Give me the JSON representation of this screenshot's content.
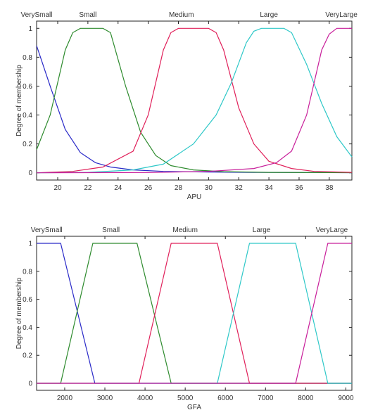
{
  "chart_data": [
    {
      "type": "line",
      "xlabel": "APU",
      "ylabel": "Degree of membership",
      "xlim": [
        18.6,
        39.5
      ],
      "ylim": [
        -0.05,
        1.05
      ],
      "xticks": [
        "20",
        "22",
        "24",
        "26",
        "28",
        "30",
        "32",
        "34",
        "36",
        "38"
      ],
      "yticks": [
        "0",
        "0.2",
        "0.4",
        "0.6",
        "0.8",
        "1"
      ],
      "colors": [
        "#2a2ac8",
        "#2e8b2e",
        "#e0205a",
        "#2ec8c8",
        "#c81e9a"
      ],
      "series": [
        {
          "name": "VerySmall",
          "label_x": 18.6,
          "x": [
            18.6,
            19.5,
            20.5,
            21.5,
            22.5,
            23.5,
            25,
            27,
            30,
            33,
            36,
            39.5
          ],
          "y": [
            0.88,
            0.6,
            0.3,
            0.14,
            0.07,
            0.04,
            0.02,
            0.01,
            0.005,
            0.003,
            0.002,
            0.001
          ]
        },
        {
          "name": "Small",
          "label_x": 22,
          "x": [
            18.6,
            19.5,
            20.5,
            21,
            21.5,
            22,
            23,
            23.5,
            24.5,
            25.5,
            26.5,
            27.5,
            29,
            31,
            34,
            39.5
          ],
          "y": [
            0.16,
            0.4,
            0.85,
            0.97,
            1,
            1,
            1,
            0.97,
            0.6,
            0.28,
            0.12,
            0.05,
            0.02,
            0.008,
            0.003,
            0.001
          ]
        },
        {
          "name": "Medium",
          "label_x": 28.2,
          "x": [
            18.6,
            21,
            23,
            25,
            26,
            27,
            27.5,
            28,
            30,
            30.5,
            31,
            32,
            33,
            34,
            35.5,
            37,
            39.5
          ],
          "y": [
            0,
            0.01,
            0.04,
            0.15,
            0.4,
            0.85,
            0.97,
            1,
            1,
            0.97,
            0.85,
            0.45,
            0.2,
            0.08,
            0.03,
            0.01,
            0.003
          ]
        },
        {
          "name": "Large",
          "label_x": 34,
          "x": [
            18.6,
            22,
            25,
            27,
            29,
            30.5,
            31.5,
            32.5,
            33,
            33.5,
            35,
            35.5,
            36.5,
            37.5,
            38.5,
            39.5
          ],
          "y": [
            0,
            0.003,
            0.02,
            0.06,
            0.2,
            0.4,
            0.62,
            0.9,
            0.98,
            1,
            1,
            0.97,
            0.75,
            0.48,
            0.25,
            0.11
          ]
        },
        {
          "name": "VeryLarge",
          "label_x": 38.8,
          "x": [
            18.6,
            26,
            30,
            33,
            34.5,
            35.5,
            36.5,
            37.5,
            38,
            38.5,
            39.5
          ],
          "y": [
            0,
            0.002,
            0.01,
            0.03,
            0.07,
            0.15,
            0.4,
            0.85,
            0.96,
            1,
            1
          ]
        }
      ]
    },
    {
      "type": "line",
      "xlabel": "GFA",
      "ylabel": "Degree of membership",
      "xlim": [
        1300,
        9150
      ],
      "ylim": [
        -0.05,
        1.05
      ],
      "xticks": [
        "2000",
        "3000",
        "4000",
        "5000",
        "6000",
        "7000",
        "8000",
        "9000"
      ],
      "yticks": [
        "0",
        "0.2",
        "0.4",
        "0.6",
        "0.8",
        "1"
      ],
      "colors": [
        "#2a2ac8",
        "#2e8b2e",
        "#e0205a",
        "#2ec8c8",
        "#c81e9a"
      ],
      "series": [
        {
          "name": "VerySmall",
          "label_x": 1550,
          "x": [
            1300,
            1900,
            2750,
            9150
          ],
          "y": [
            1,
            1,
            0,
            0
          ]
        },
        {
          "name": "Small",
          "label_x": 3150,
          "x": [
            1300,
            1900,
            2700,
            3800,
            4650,
            9150
          ],
          "y": [
            0,
            0,
            1,
            1,
            0,
            0
          ]
        },
        {
          "name": "Medium",
          "label_x": 5000,
          "x": [
            1300,
            3850,
            4650,
            5800,
            6600,
            9150
          ],
          "y": [
            0,
            0,
            1,
            1,
            0,
            0
          ]
        },
        {
          "name": "Large",
          "label_x": 6900,
          "x": [
            1300,
            5800,
            6600,
            7750,
            8550,
            9150
          ],
          "y": [
            0,
            0,
            1,
            1,
            0,
            0
          ]
        },
        {
          "name": "VeryLarge",
          "label_x": 8650,
          "x": [
            1300,
            7750,
            8550,
            9150
          ],
          "y": [
            0,
            0,
            1,
            1
          ]
        }
      ]
    }
  ]
}
